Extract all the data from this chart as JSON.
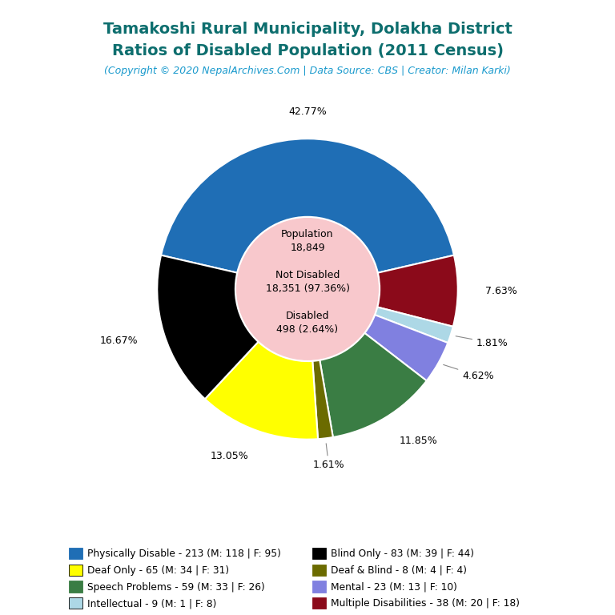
{
  "title_line1": "Tamakoshi Rural Municipality, Dolakha District",
  "title_line2": "Ratios of Disabled Population (2011 Census)",
  "subtitle": "(Copyright © 2020 NepalArchives.Com | Data Source: CBS | Creator: Milan Karki)",
  "title_color": "#0d6e6e",
  "subtitle_color": "#1a9acd",
  "center_circle_color": "#f8c8cc",
  "total_population": 18849,
  "not_disabled": 18351,
  "disabled": 498,
  "slices": [
    {
      "label": "Physically Disable - 213 (M: 118 | F: 95)",
      "value": 213,
      "pct": "42.77%",
      "color": "#1f6eb5"
    },
    {
      "label": "Multiple Disabilities - 38 (M: 20 | F: 18)",
      "value": 38,
      "pct": "7.63%",
      "color": "#8b0a1a"
    },
    {
      "label": "Intellectual - 9 (M: 1 | F: 8)",
      "value": 9,
      "pct": "1.81%",
      "color": "#add8e6"
    },
    {
      "label": "Mental - 23 (M: 13 | F: 10)",
      "value": 23,
      "pct": "4.62%",
      "color": "#8080e0"
    },
    {
      "label": "Speech Problems - 59 (M: 33 | F: 26)",
      "value": 59,
      "pct": "11.85%",
      "color": "#3a7d44"
    },
    {
      "label": "Deaf & Blind - 8 (M: 4 | F: 4)",
      "value": 8,
      "pct": "1.61%",
      "color": "#6b6b00"
    },
    {
      "label": "Deaf Only - 65 (M: 34 | F: 31)",
      "value": 65,
      "pct": "13.05%",
      "color": "#ffff00"
    },
    {
      "label": "Blind Only - 83 (M: 39 | F: 44)",
      "value": 83,
      "pct": "16.67%",
      "color": "#000000"
    }
  ],
  "legend_entries": [
    {
      "label": "Physically Disable - 213 (M: 118 | F: 95)",
      "color": "#1f6eb5"
    },
    {
      "label": "Deaf Only - 65 (M: 34 | F: 31)",
      "color": "#ffff00"
    },
    {
      "label": "Speech Problems - 59 (M: 33 | F: 26)",
      "color": "#3a7d44"
    },
    {
      "label": "Intellectual - 9 (M: 1 | F: 8)",
      "color": "#add8e6"
    },
    {
      "label": "Blind Only - 83 (M: 39 | F: 44)",
      "color": "#000000"
    },
    {
      "label": "Deaf & Blind - 8 (M: 4 | F: 4)",
      "color": "#6b6b00"
    },
    {
      "label": "Mental - 23 (M: 13 | F: 10)",
      "color": "#8080e0"
    },
    {
      "label": "Multiple Disabilities - 38 (M: 20 | F: 18)",
      "color": "#8b0a1a"
    }
  ],
  "background_color": "#ffffff"
}
